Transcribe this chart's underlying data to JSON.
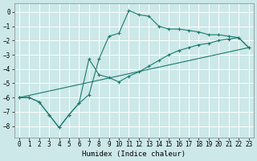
{
  "xlabel": "Humidex (Indice chaleur)",
  "bg_color": "#cce8e8",
  "grid_color": "#ffffff",
  "line_color": "#1a7a6e",
  "xlim": [
    -0.5,
    23.5
  ],
  "ylim": [
    -8.8,
    0.6
  ],
  "yticks": [
    0,
    -1,
    -2,
    -3,
    -4,
    -5,
    -6,
    -7,
    -8
  ],
  "xticks": [
    0,
    1,
    2,
    3,
    4,
    5,
    6,
    7,
    8,
    9,
    10,
    11,
    12,
    13,
    14,
    15,
    16,
    17,
    18,
    19,
    20,
    21,
    22,
    23
  ],
  "series1_x": [
    0,
    1,
    2,
    3,
    4,
    5,
    6,
    7,
    8,
    9,
    10,
    11,
    12,
    13,
    14,
    15,
    16,
    17,
    18,
    19,
    20,
    21,
    22,
    23
  ],
  "series1_y": [
    -6.0,
    -6.0,
    -6.3,
    -7.2,
    -8.1,
    -7.2,
    -6.4,
    -5.8,
    -3.3,
    -1.7,
    -1.5,
    0.1,
    -0.2,
    -0.3,
    -1.0,
    -1.2,
    -1.2,
    -1.3,
    -1.4,
    -1.6,
    -1.6,
    -1.7,
    -1.8,
    -2.5
  ],
  "series2_x": [
    0,
    1,
    2,
    3,
    4,
    5,
    6,
    7,
    8,
    9,
    10,
    11,
    12,
    13,
    14,
    15,
    16,
    17,
    18,
    19,
    20,
    21,
    22,
    23
  ],
  "series2_y": [
    -6.0,
    -6.0,
    -6.3,
    -7.2,
    -8.1,
    -7.2,
    -6.4,
    -3.3,
    -4.4,
    -4.6,
    -4.9,
    -4.5,
    -4.2,
    -3.8,
    -3.4,
    -3.0,
    -2.7,
    -2.5,
    -2.3,
    -2.2,
    -2.0,
    -1.9,
    -1.8,
    -2.5
  ],
  "series3_x": [
    0,
    23
  ],
  "series3_y": [
    -6.0,
    -2.5
  ]
}
